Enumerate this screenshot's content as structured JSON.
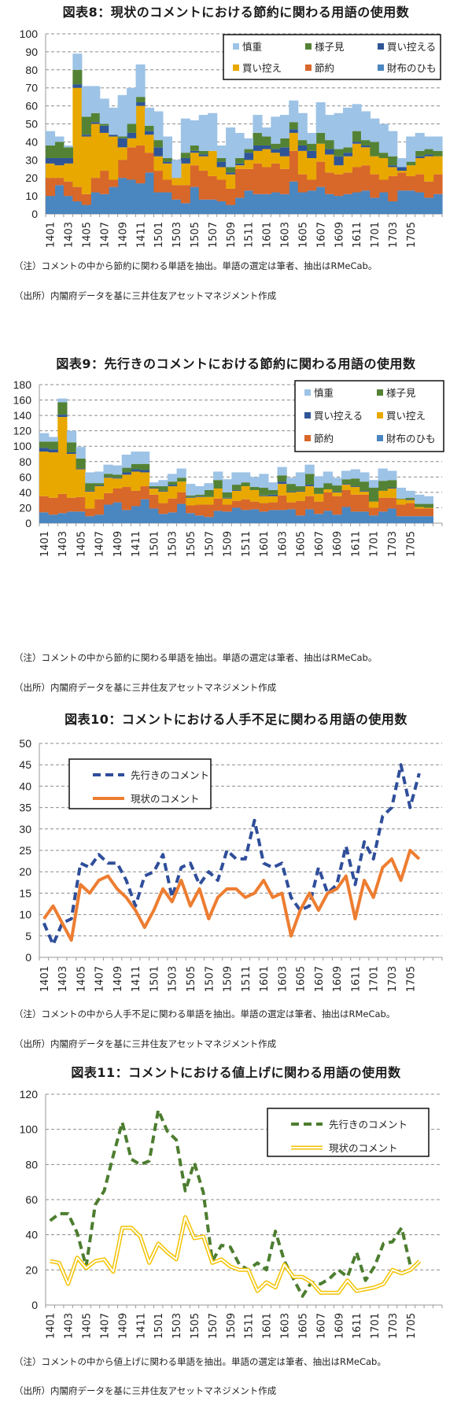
{
  "x_labels_shown": [
    "1401",
    "1403",
    "1405",
    "1407",
    "1409",
    "1411",
    "1501",
    "1503",
    "1505",
    "1507",
    "1509",
    "1511",
    "1601",
    "1603",
    "1605",
    "1607",
    "1609",
    "1611",
    "1701",
    "1703",
    "1705"
  ],
  "colors": {
    "shincho": "#9DC3E6",
    "yosumi": "#548235",
    "kaihikaeru": "#2F5597",
    "kaihikae": "#E8A800",
    "setsuyaku": "#D8672A",
    "saifu": "#4A86C0",
    "line_forward_blue": "#2F4E9A",
    "line_current_orange": "#ED7D31",
    "line_forward_green": "#4C7D2F",
    "line_current_yellow": "#F2C200",
    "grid": "#8C8C8C"
  },
  "chart_data": [
    {
      "id": "fig8",
      "type": "area",
      "stacked": true,
      "title": "図表8：現状のコメントにおける節約に関わる用語の使用数",
      "note": "（注）コメントの中から節約に関わる単語を抽出。単語の選定は筆者、抽出はRMeCab。",
      "source": "（出所）内閣府データを基に三井住友アセットマネジメント作成",
      "xlabel": "",
      "ylabel": "",
      "ylim": [
        0,
        100
      ],
      "yticks": [
        0,
        10,
        20,
        30,
        40,
        50,
        60,
        70,
        80,
        90,
        100
      ],
      "grid": true,
      "legend_position": "top-right",
      "legend_order": [
        "慎重",
        "様子見",
        "買い控える",
        "買い控え",
        "節約",
        "財布のひも"
      ],
      "x": [
        "1401",
        "1402",
        "1403",
        "1404",
        "1405",
        "1406",
        "1407",
        "1408",
        "1409",
        "1410",
        "1411",
        "1412",
        "1501",
        "1502",
        "1503",
        "1504",
        "1505",
        "1506",
        "1507",
        "1508",
        "1509",
        "1510",
        "1511",
        "1512",
        "1601",
        "1602",
        "1603",
        "1604",
        "1605",
        "1606",
        "1607",
        "1608",
        "1609",
        "1610",
        "1611",
        "1612",
        "1701",
        "1702",
        "1703",
        "1704",
        "1705",
        "1706",
        "1707",
        "1708"
      ],
      "series": [
        {
          "name": "財布のひも",
          "color_key": "saifu",
          "values": [
            10,
            16,
            10,
            7,
            5,
            12,
            11,
            15,
            20,
            19,
            17,
            23,
            12,
            12,
            8,
            6,
            15,
            8,
            8,
            7,
            5,
            9,
            13,
            11,
            11,
            12,
            11,
            18,
            12,
            13,
            15,
            11,
            10,
            11,
            12,
            13,
            9,
            12,
            7,
            13,
            13,
            12,
            9,
            11
          ]
        },
        {
          "name": "節約",
          "color_key": "setsuyaku",
          "values": [
            10,
            4,
            8,
            8,
            6,
            8,
            13,
            4,
            10,
            18,
            21,
            11,
            12,
            7,
            8,
            10,
            12,
            16,
            13,
            12,
            9,
            16,
            12,
            17,
            15,
            16,
            14,
            17,
            10,
            6,
            14,
            12,
            12,
            12,
            14,
            14,
            13,
            7,
            14,
            10,
            8,
            10,
            9,
            11
          ]
        },
        {
          "name": "買い控え",
          "color_key": "kaihikae",
          "values": [
            8,
            7,
            10,
            55,
            32,
            30,
            21,
            24,
            7,
            5,
            22,
            10,
            8,
            9,
            4,
            12,
            7,
            8,
            14,
            7,
            8,
            2,
            5,
            7,
            10,
            6,
            7,
            10,
            13,
            12,
            10,
            10,
            5,
            9,
            13,
            10,
            10,
            12,
            5,
            1,
            6,
            9,
            14,
            10
          ]
        },
        {
          "name": "買い控える",
          "color_key": "kaihikaeru",
          "values": [
            3,
            4,
            3,
            2,
            1,
            1,
            4,
            1,
            5,
            3,
            2,
            2,
            5,
            1,
            0,
            3,
            1,
            1,
            0,
            3,
            1,
            1,
            4,
            3,
            2,
            2,
            5,
            2,
            3,
            4,
            0,
            3,
            5,
            2,
            1,
            1,
            0,
            0,
            1,
            2,
            0,
            1,
            1,
            0
          ]
        },
        {
          "name": "様子見",
          "color_key": "yosumi",
          "values": [
            7,
            9,
            6,
            8,
            10,
            5,
            1,
            0,
            1,
            5,
            3,
            3,
            4,
            2,
            0,
            3,
            3,
            2,
            0,
            2,
            3,
            3,
            2,
            7,
            5,
            3,
            5,
            4,
            3,
            4,
            6,
            5,
            4,
            3,
            6,
            3,
            8,
            3,
            5,
            0,
            2,
            3,
            3,
            3
          ]
        },
        {
          "name": "慎重",
          "color_key": "shincho",
          "values": [
            8,
            3,
            1,
            9,
            17,
            15,
            14,
            15,
            23,
            20,
            18,
            10,
            16,
            12,
            10,
            19,
            14,
            20,
            21,
            7,
            22,
            14,
            6,
            10,
            5,
            15,
            13,
            12,
            15,
            6,
            17,
            14,
            20,
            22,
            15,
            16,
            13,
            16,
            14,
            5,
            14,
            10,
            7,
            8
          ]
        }
      ]
    },
    {
      "id": "fig9",
      "type": "area",
      "stacked": true,
      "title": "図表9：先行きのコメントにおける節約に関わる用語の使用数",
      "note": "（注）コメントの中から節約に関わる単語を抽出。単語の選定は筆者、抽出はRMeCab。",
      "source": "（出所）内閣府データを基に三井住友アセットマネジメント作成",
      "xlabel": "",
      "ylabel": "",
      "ylim": [
        0,
        180
      ],
      "yticks": [
        0,
        20,
        40,
        60,
        80,
        100,
        120,
        140,
        160,
        180
      ],
      "grid": true,
      "legend_position": "top-right",
      "legend_order": [
        "慎重",
        "様子見",
        "買い控える",
        "買い控え",
        "節約",
        "財布のひも"
      ],
      "x": [
        "1401",
        "1402",
        "1403",
        "1404",
        "1405",
        "1406",
        "1407",
        "1408",
        "1409",
        "1410",
        "1411",
        "1412",
        "1501",
        "1502",
        "1503",
        "1504",
        "1505",
        "1506",
        "1507",
        "1508",
        "1509",
        "1510",
        "1511",
        "1512",
        "1601",
        "1602",
        "1603",
        "1604",
        "1605",
        "1606",
        "1607",
        "1608",
        "1609",
        "1610",
        "1611",
        "1612",
        "1701",
        "1702",
        "1703",
        "1704",
        "1705",
        "1706",
        "1707",
        "1708"
      ],
      "series": [
        {
          "name": "財布のひも",
          "color_key": "saifu",
          "values": [
            14,
            11,
            13,
            15,
            15,
            9,
            11,
            24,
            27,
            17,
            22,
            31,
            19,
            12,
            14,
            25,
            13,
            10,
            8,
            16,
            15,
            20,
            17,
            18,
            15,
            17,
            17,
            18,
            10,
            18,
            12,
            16,
            11,
            21,
            15,
            15,
            10,
            15,
            19,
            9,
            9,
            9,
            9,
            0
          ]
        },
        {
          "name": "節約",
          "color_key": "setsuyaku",
          "values": [
            21,
            22,
            25,
            18,
            19,
            10,
            20,
            15,
            18,
            30,
            20,
            17,
            18,
            14,
            18,
            15,
            10,
            14,
            16,
            16,
            9,
            9,
            14,
            10,
            11,
            10,
            19,
            9,
            19,
            17,
            16,
            24,
            24,
            22,
            22,
            22,
            10,
            18,
            14,
            15,
            17,
            10,
            10,
            0
          ]
        },
        {
          "name": "買い控え",
          "color_key": "kaihikae",
          "values": [
            58,
            59,
            100,
            57,
            36,
            22,
            17,
            20,
            13,
            16,
            25,
            18,
            8,
            15,
            16,
            14,
            10,
            10,
            10,
            13,
            8,
            13,
            17,
            15,
            9,
            8,
            15,
            13,
            12,
            13,
            10,
            4,
            5,
            7,
            10,
            4,
            8,
            9,
            12,
            7,
            4,
            2,
            1,
            0
          ]
        },
        {
          "name": "買い控える",
          "color_key": "kaihikaeru",
          "values": [
            5,
            4,
            3,
            2,
            1,
            1,
            1,
            1,
            1,
            3,
            3,
            3,
            1,
            1,
            2,
            0,
            1,
            1,
            0,
            0,
            1,
            1,
            0,
            0,
            1,
            2,
            3,
            1,
            1,
            2,
            0,
            0,
            1,
            1,
            1,
            1,
            0,
            0,
            1,
            0,
            1,
            0,
            0,
            0
          ]
        },
        {
          "name": "様子見",
          "color_key": "yosumi",
          "values": [
            8,
            10,
            16,
            13,
            13,
            10,
            3,
            4,
            4,
            6,
            7,
            8,
            2,
            6,
            4,
            5,
            2,
            2,
            9,
            11,
            7,
            7,
            5,
            4,
            10,
            6,
            8,
            10,
            6,
            14,
            8,
            8,
            8,
            6,
            10,
            12,
            18,
            13,
            10,
            1,
            2,
            4,
            5,
            0
          ]
        },
        {
          "name": "慎重",
          "color_key": "shincho",
          "values": [
            11,
            6,
            5,
            15,
            15,
            14,
            15,
            12,
            12,
            17,
            16,
            16,
            5,
            8,
            10,
            12,
            15,
            11,
            9,
            11,
            17,
            16,
            13,
            13,
            18,
            10,
            11,
            8,
            18,
            12,
            15,
            15,
            10,
            11,
            12,
            12,
            10,
            16,
            12,
            14,
            9,
            12,
            10,
            0
          ]
        }
      ]
    },
    {
      "id": "fig10",
      "type": "line",
      "title": "図表10：コメントにおける人手不足に関わる用語の使用数",
      "note": "（注）コメントの中から人手不足に関わる単語を抽出。単語の選定は筆者、抽出はRMeCab。",
      "source": "（出所）内閣府データを基に三井住友アセットマネジメント作成",
      "xlabel": "",
      "ylabel": "",
      "ylim": [
        0,
        50
      ],
      "yticks": [
        0,
        5,
        10,
        15,
        20,
        25,
        30,
        35,
        40,
        45,
        50
      ],
      "grid": true,
      "legend_position": "top-left",
      "x": [
        "1401",
        "1402",
        "1403",
        "1404",
        "1405",
        "1406",
        "1407",
        "1408",
        "1409",
        "1410",
        "1411",
        "1412",
        "1501",
        "1502",
        "1503",
        "1504",
        "1505",
        "1506",
        "1507",
        "1508",
        "1509",
        "1510",
        "1511",
        "1512",
        "1601",
        "1602",
        "1603",
        "1604",
        "1605",
        "1606",
        "1607",
        "1608",
        "1609",
        "1610",
        "1611",
        "1612",
        "1701",
        "1702",
        "1703",
        "1704",
        "1705",
        "1706",
        "1707",
        "1708"
      ],
      "series": [
        {
          "name": "先行きのコメント",
          "color_key": "line_forward_blue",
          "style": "dashed",
          "values": [
            8,
            3,
            8,
            9,
            22,
            21,
            24,
            22,
            22,
            18,
            12,
            19,
            20,
            24,
            14,
            21,
            22,
            17,
            20,
            18,
            25,
            23,
            23,
            32,
            22,
            21,
            22,
            14,
            11,
            12,
            21,
            15,
            17,
            26,
            17,
            27,
            23,
            33,
            35,
            45,
            35,
            43,
            null,
            null
          ]
        },
        {
          "name": "現状のコメント",
          "color_key": "line_current_orange",
          "style": "solid",
          "values": [
            9,
            12,
            8,
            4,
            17,
            15,
            18,
            19,
            16,
            14,
            11,
            7,
            11,
            16,
            13,
            18,
            12,
            16,
            9,
            14,
            16,
            16,
            14,
            15,
            18,
            14,
            15,
            5,
            11,
            15,
            11,
            15,
            16,
            19,
            9,
            18,
            14,
            21,
            23,
            18,
            25,
            23,
            null,
            null
          ]
        }
      ]
    },
    {
      "id": "fig11",
      "type": "line",
      "title": "図表11：コメントにおける値上げに関わる用語の使用数",
      "note": "（注）コメントの中から値上げに関わる単語を抽出。単語の選定は筆者、抽出はRMeCab。",
      "source": "（出所）内閣府データを基に三井住友アセットマネジメント作成",
      "xlabel": "",
      "ylabel": "",
      "ylim": [
        0,
        120
      ],
      "yticks": [
        0,
        20,
        40,
        60,
        80,
        100,
        120
      ],
      "grid": true,
      "legend_position": "top-right",
      "x": [
        "1401",
        "1402",
        "1403",
        "1404",
        "1405",
        "1406",
        "1407",
        "1408",
        "1409",
        "1410",
        "1411",
        "1412",
        "1501",
        "1502",
        "1503",
        "1504",
        "1505",
        "1506",
        "1507",
        "1508",
        "1509",
        "1510",
        "1511",
        "1512",
        "1601",
        "1602",
        "1603",
        "1604",
        "1605",
        "1606",
        "1607",
        "1608",
        "1609",
        "1610",
        "1611",
        "1612",
        "1701",
        "1702",
        "1703",
        "1704",
        "1705",
        "1706",
        "1707",
        "1708"
      ],
      "series": [
        {
          "name": "先行きのコメント",
          "color_key": "line_forward_green",
          "style": "dashed",
          "values": [
            48,
            52,
            52,
            41,
            22,
            57,
            65,
            85,
            104,
            83,
            80,
            82,
            111,
            99,
            94,
            65,
            81,
            64,
            25,
            34,
            33,
            23,
            20,
            24,
            20,
            42,
            25,
            15,
            5,
            13,
            12,
            15,
            20,
            16,
            30,
            14,
            22,
            35,
            36,
            44,
            22,
            null,
            null,
            null
          ]
        },
        {
          "name": "現状のコメント",
          "color_key": "line_current_yellow",
          "style": "double",
          "values": [
            25,
            24,
            12,
            27,
            21,
            25,
            26,
            19,
            44,
            44,
            39,
            24,
            35,
            30,
            26,
            50,
            38,
            39,
            24,
            26,
            22,
            20,
            20,
            8,
            13,
            10,
            23,
            16,
            16,
            13,
            7,
            7,
            7,
            14,
            8,
            9,
            10,
            12,
            20,
            18,
            20,
            25,
            null,
            null
          ]
        }
      ]
    }
  ]
}
